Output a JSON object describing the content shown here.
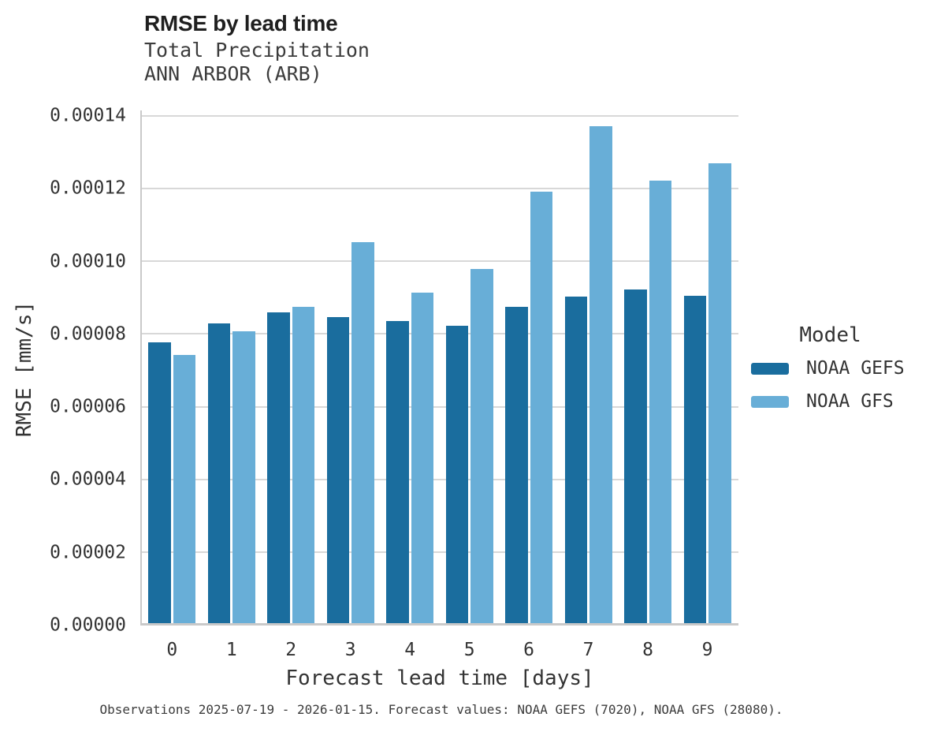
{
  "header": {
    "title": "RMSE by lead time",
    "subtitle_line1": "Total Precipitation",
    "subtitle_line2": "ANN ARBOR (ARB)"
  },
  "axes": {
    "x_label": "Forecast lead time [days]",
    "y_label": "RMSE [mm/s]"
  },
  "legend": {
    "title": "Model",
    "items": [
      {
        "label": "NOAA GEFS",
        "color": "#1a6d9e"
      },
      {
        "label": "NOAA GFS",
        "color": "#68aed7"
      }
    ]
  },
  "footer": {
    "caption": "Observations 2025-07-19 - 2026-01-15. Forecast values: NOAA GEFS (7020), NOAA GFS (28080)."
  },
  "colors": {
    "gefs_dark_blue": "#1a6d9e",
    "gfs_light_blue": "#68aed7",
    "gridline": "#d8d8d8",
    "axis_spine": "#c9c9c9",
    "tick_text": "#333333"
  },
  "chart_data": {
    "type": "bar",
    "title": "RMSE by lead time",
    "subtitle": "Total Precipitation",
    "station": "ANN ARBOR (ARB)",
    "xlabel": "Forecast lead time [days]",
    "ylabel": "RMSE [mm/s]",
    "categories": [
      "0",
      "1",
      "2",
      "3",
      "4",
      "5",
      "6",
      "7",
      "8",
      "9"
    ],
    "series": [
      {
        "name": "NOAA GEFS",
        "color": "#1a6d9e",
        "values": [
          7.72e-05,
          8.23e-05,
          8.53e-05,
          8.4e-05,
          8.29e-05,
          8.17e-05,
          8.7e-05,
          8.98e-05,
          9.16e-05,
          9e-05
        ]
      },
      {
        "name": "NOAA GFS",
        "color": "#68aed7",
        "values": [
          7.36e-05,
          8.01e-05,
          8.69e-05,
          0.0001047,
          9.08e-05,
          9.72e-05,
          0.0001186,
          0.0001366,
          0.0001216,
          0.0001264
        ]
      }
    ],
    "ylim": [
      0,
      0.00014
    ],
    "ytick_labels": [
      "0.00000",
      "0.00002",
      "0.00004",
      "0.00006",
      "0.00008",
      "0.00010",
      "0.00012",
      "0.00014"
    ],
    "grid": true,
    "legend_title": "Model",
    "legend_position": "right",
    "caption": "Observations 2025-07-19 - 2026-01-15. Forecast values: NOAA GEFS (7020), NOAA GFS (28080)."
  }
}
